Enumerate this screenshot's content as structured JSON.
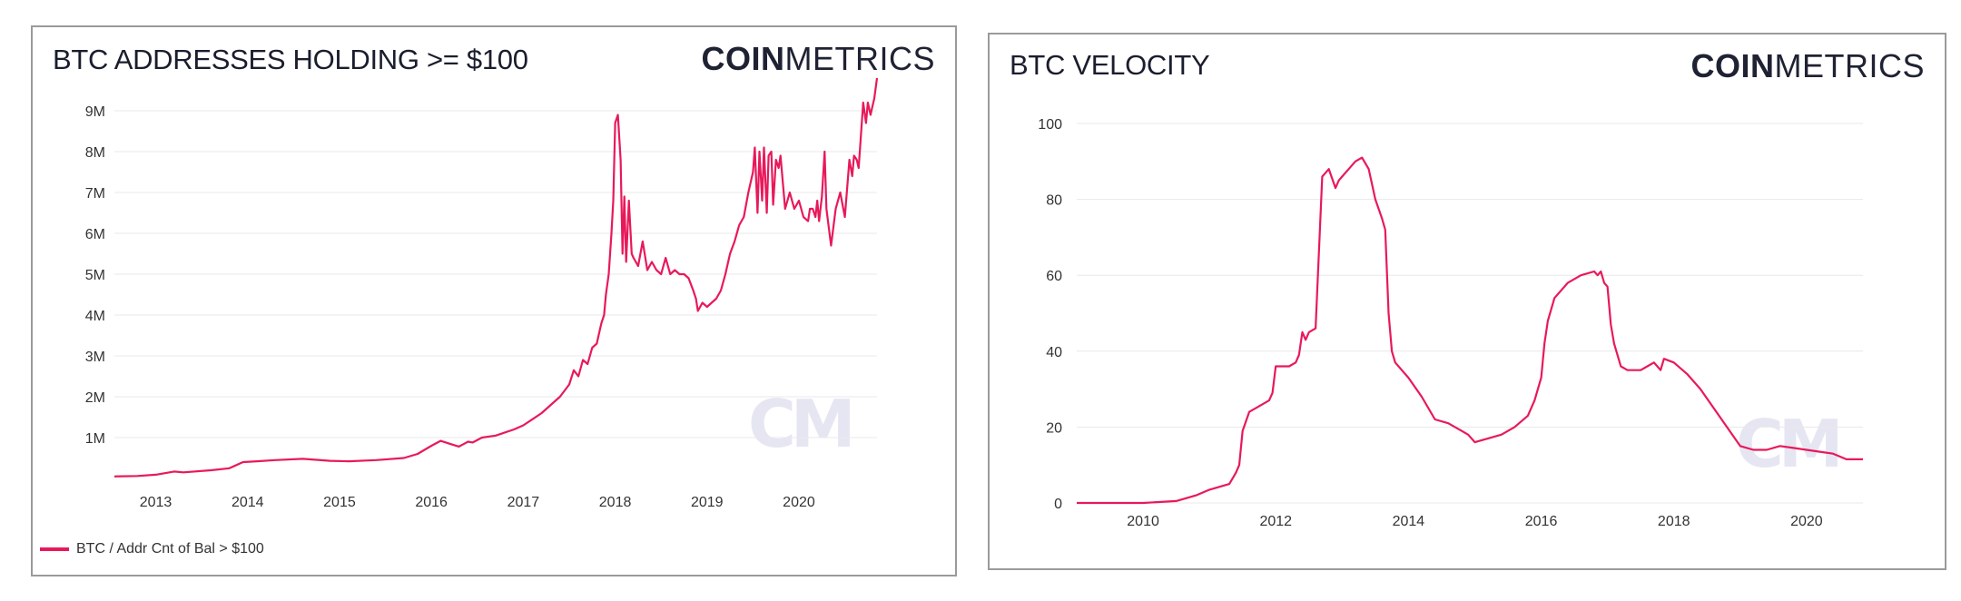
{
  "colors": {
    "series": "#e8195a",
    "grid": "#e8e8e8",
    "watermark": "#e6e6f3",
    "text": "#333333"
  },
  "brand": {
    "logo_bold": "COIN",
    "logo_light": "METRICS",
    "watermark": "CM"
  },
  "chart_data": [
    {
      "type": "line",
      "title": "BTC ADDRESSES HOLDING >= $100",
      "xlabel": "",
      "ylabel": "",
      "grid": "horizontal",
      "legend": "bottom-left",
      "xlim": [
        2012.55,
        2020.85
      ],
      "ylim": [
        0,
        10000000
      ],
      "x_ticks": [
        2013,
        2014,
        2015,
        2016,
        2017,
        2018,
        2019,
        2020
      ],
      "x_tick_labels": [
        "2013",
        "2014",
        "2015",
        "2016",
        "2017",
        "2018",
        "2019",
        "2020"
      ],
      "y_ticks": [
        1000000,
        2000000,
        3000000,
        4000000,
        5000000,
        6000000,
        7000000,
        8000000,
        9000000
      ],
      "y_tick_labels": [
        "1M",
        "2M",
        "3M",
        "4M",
        "5M",
        "6M",
        "7M",
        "8M",
        "9M"
      ],
      "series": [
        {
          "name": "BTC / Addr Cnt of Bal > $100",
          "x": [
            2012.55,
            2012.8,
            2013.0,
            2013.2,
            2013.3,
            2013.6,
            2013.8,
            2013.95,
            2014.1,
            2014.3,
            2014.6,
            2014.9,
            2015.1,
            2015.4,
            2015.7,
            2015.85,
            2016.0,
            2016.1,
            2016.2,
            2016.3,
            2016.4,
            2016.45,
            2016.55,
            2016.7,
            2016.9,
            2017.0,
            2017.1,
            2017.2,
            2017.3,
            2017.4,
            2017.5,
            2017.55,
            2017.6,
            2017.65,
            2017.7,
            2017.75,
            2017.8,
            2017.85,
            2017.88,
            2017.9,
            2017.93,
            2017.96,
            2017.98,
            2018.0,
            2018.03,
            2018.06,
            2018.08,
            2018.1,
            2018.12,
            2018.15,
            2018.18,
            2018.2,
            2018.25,
            2018.3,
            2018.35,
            2018.4,
            2018.45,
            2018.5,
            2018.55,
            2018.6,
            2018.65,
            2018.7,
            2018.75,
            2018.8,
            2018.85,
            2018.88,
            2018.9,
            2018.95,
            2019.0,
            2019.05,
            2019.1,
            2019.15,
            2019.2,
            2019.25,
            2019.3,
            2019.35,
            2019.4,
            2019.45,
            2019.5,
            2019.52,
            2019.55,
            2019.57,
            2019.6,
            2019.62,
            2019.65,
            2019.67,
            2019.7,
            2019.72,
            2019.75,
            2019.78,
            2019.8,
            2019.85,
            2019.9,
            2019.95,
            2020.0,
            2020.05,
            2020.1,
            2020.12,
            2020.15,
            2020.18,
            2020.2,
            2020.22,
            2020.25,
            2020.28,
            2020.3,
            2020.35,
            2020.4,
            2020.45,
            2020.5,
            2020.55,
            2020.58,
            2020.6,
            2020.63,
            2020.65,
            2020.7,
            2020.73,
            2020.75,
            2020.78,
            2020.8,
            2020.82,
            2020.85
          ],
          "values": [
            50000,
            60000,
            90000,
            170000,
            150000,
            200000,
            250000,
            400000,
            420000,
            450000,
            480000,
            430000,
            420000,
            450000,
            500000,
            600000,
            800000,
            920000,
            850000,
            780000,
            900000,
            880000,
            1000000,
            1050000,
            1200000,
            1300000,
            1450000,
            1600000,
            1800000,
            2000000,
            2300000,
            2650000,
            2500000,
            2900000,
            2800000,
            3200000,
            3300000,
            3800000,
            4000000,
            4500000,
            5000000,
            6000000,
            6800000,
            8700000,
            8900000,
            7800000,
            5500000,
            6900000,
            5300000,
            6800000,
            5500000,
            5400000,
            5200000,
            5800000,
            5100000,
            5300000,
            5100000,
            5000000,
            5400000,
            5000000,
            5100000,
            5000000,
            5000000,
            4900000,
            4600000,
            4400000,
            4100000,
            4300000,
            4200000,
            4300000,
            4400000,
            4600000,
            5000000,
            5500000,
            5800000,
            6200000,
            6400000,
            7000000,
            7500000,
            8100000,
            6500000,
            8000000,
            6800000,
            8100000,
            6500000,
            7900000,
            8000000,
            6700000,
            7800000,
            7600000,
            7900000,
            6600000,
            7000000,
            6600000,
            6800000,
            6400000,
            6300000,
            6600000,
            6600000,
            6400000,
            6800000,
            6300000,
            6900000,
            8000000,
            6600000,
            5700000,
            6600000,
            7000000,
            6400000,
            7800000,
            7400000,
            7900000,
            7800000,
            7600000,
            9200000,
            8700000,
            9200000,
            8900000,
            9100000,
            9300000,
            9800000
          ]
        }
      ]
    },
    {
      "type": "line",
      "title": "BTC VELOCITY",
      "xlabel": "",
      "ylabel": "",
      "grid": "horizontal",
      "xlim": [
        2009.0,
        2020.85
      ],
      "ylim": [
        0,
        100
      ],
      "x_ticks": [
        2010,
        2012,
        2014,
        2016,
        2018,
        2020
      ],
      "x_tick_labels": [
        "2010",
        "2012",
        "2014",
        "2016",
        "2018",
        "2020"
      ],
      "y_ticks": [
        0,
        20,
        40,
        60,
        80,
        100
      ],
      "y_tick_labels": [
        "0",
        "20",
        "40",
        "60",
        "80",
        "100"
      ],
      "series": [
        {
          "x": [
            2009.0,
            2010.0,
            2010.5,
            2010.6,
            2010.8,
            2011.0,
            2011.2,
            2011.3,
            2011.4,
            2011.45,
            2011.5,
            2011.6,
            2011.8,
            2011.9,
            2011.95,
            2012.0,
            2012.2,
            2012.3,
            2012.35,
            2012.4,
            2012.45,
            2012.5,
            2012.6,
            2012.7,
            2012.75,
            2012.8,
            2012.9,
            2012.95,
            2013.0,
            2013.1,
            2013.2,
            2013.3,
            2013.4,
            2013.5,
            2013.6,
            2013.65,
            2013.7,
            2013.75,
            2013.8,
            2014.0,
            2014.2,
            2014.4,
            2014.6,
            2014.8,
            2014.9,
            2015.0,
            2015.2,
            2015.4,
            2015.6,
            2015.8,
            2015.9,
            2016.0,
            2016.05,
            2016.1,
            2016.2,
            2016.4,
            2016.6,
            2016.8,
            2016.85,
            2016.9,
            2016.95,
            2017.0,
            2017.05,
            2017.1,
            2017.2,
            2017.3,
            2017.5,
            2017.6,
            2017.7,
            2017.75,
            2017.8,
            2017.85,
            2018.0,
            2018.2,
            2018.4,
            2018.6,
            2018.8,
            2019.0,
            2019.2,
            2019.4,
            2019.6,
            2019.8,
            2020.0,
            2020.2,
            2020.4,
            2020.6,
            2020.85
          ],
          "values": [
            0,
            0,
            0.5,
            1,
            2,
            3.5,
            4.5,
            5,
            8,
            10,
            19,
            24,
            26,
            27,
            29,
            36,
            36,
            37,
            39,
            45,
            43,
            45,
            46,
            86,
            87,
            88,
            83,
            85,
            86,
            88,
            90,
            91,
            88,
            80,
            75,
            72,
            50,
            40,
            37,
            33,
            28,
            22,
            21,
            19,
            18,
            16,
            17,
            18,
            20,
            23,
            27,
            33,
            42,
            48,
            54,
            58,
            60,
            61,
            60,
            61,
            58,
            57,
            47,
            42,
            36,
            35,
            35,
            36,
            37,
            36,
            35,
            38,
            37,
            34,
            30,
            25,
            20,
            15,
            14,
            14,
            15,
            14.5,
            14,
            13.5,
            13,
            11.5,
            11.5
          ]
        }
      ]
    }
  ]
}
